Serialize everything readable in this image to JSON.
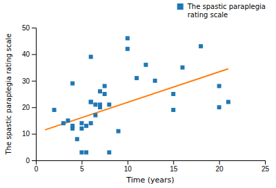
{
  "chart_data": {
    "type": "scatter",
    "xlabel": "Time (years)",
    "ylabel": "The spastic paraplegia rating scale",
    "series": [
      {
        "name": "The spastic paraplegia\nrating scale",
        "type": "scatter",
        "marker": "square",
        "x": [
          2,
          3,
          3.5,
          4,
          4,
          4,
          4.5,
          5,
          5,
          5,
          5.5,
          5.5,
          6,
          6,
          6,
          6,
          6.5,
          6.5,
          7,
          7,
          7,
          7.5,
          7.5,
          8,
          8,
          9,
          10,
          10,
          11,
          12,
          13,
          15,
          15,
          16,
          18,
          20,
          20,
          21
        ],
        "values": [
          19,
          14,
          15,
          12,
          13,
          29,
          8,
          3,
          12,
          14,
          3,
          13,
          22,
          14,
          22,
          39,
          17,
          21,
          20,
          26,
          21,
          28,
          25,
          3,
          21,
          11,
          46,
          42,
          31,
          36,
          30,
          25,
          19,
          35,
          43,
          20,
          28,
          22
        ]
      },
      {
        "type": "line",
        "x": [
          1,
          21
        ],
        "values": [
          11.5,
          34.5
        ]
      }
    ],
    "xlim": [
      0,
      25
    ],
    "ylim": [
      0,
      50
    ],
    "xticks": [
      0,
      5,
      10,
      15,
      20,
      25
    ],
    "yticks": [
      0,
      10,
      20,
      30,
      40,
      50
    ],
    "legend": "upper right"
  }
}
